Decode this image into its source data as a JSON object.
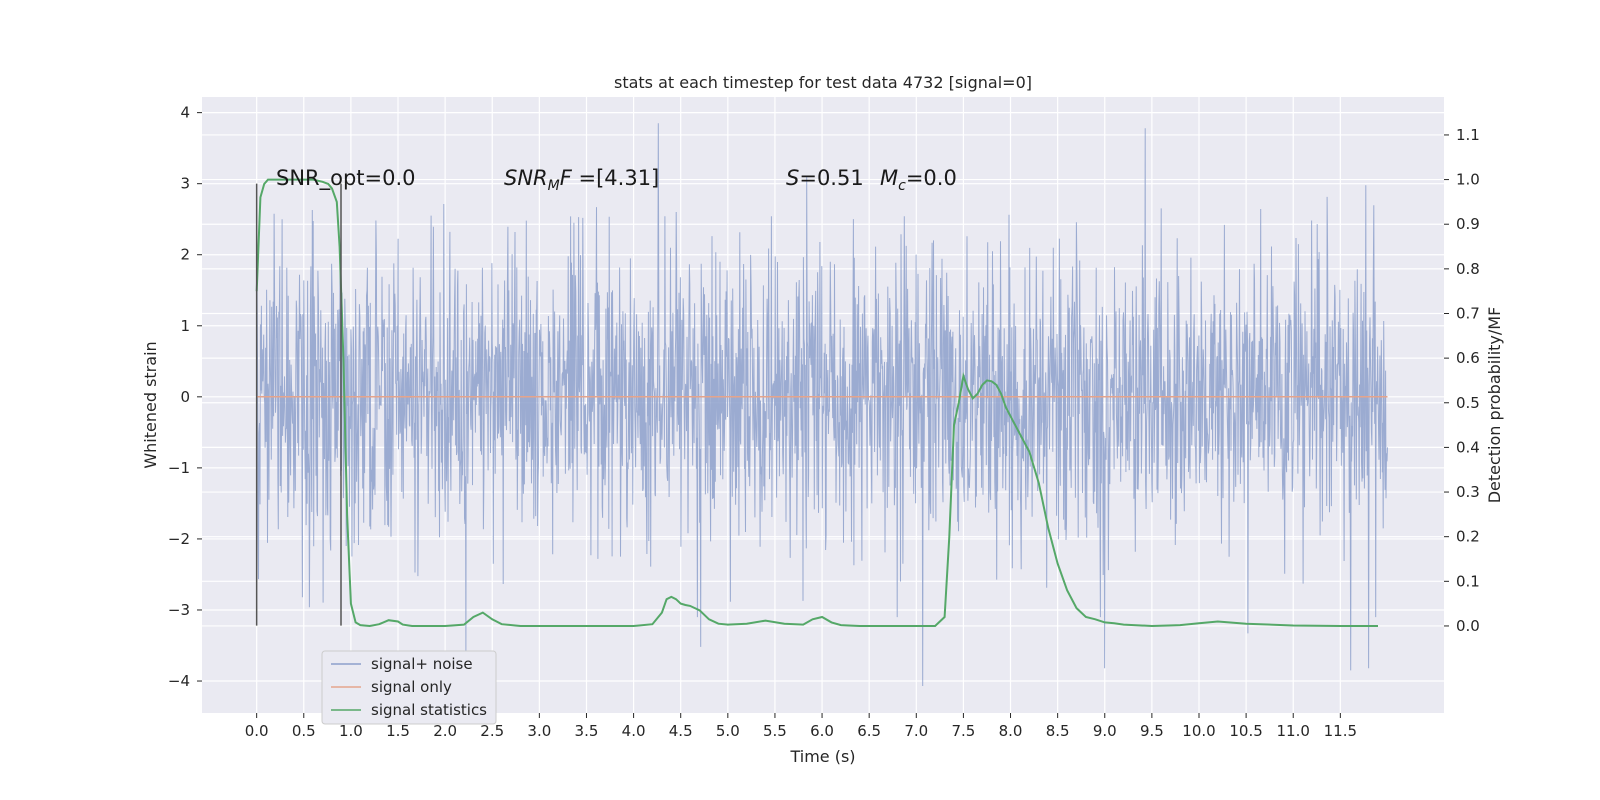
{
  "chart_data": {
    "type": "line",
    "title": "stats at each timestep for test data 4732 [signal=0]",
    "xlabel": "Time (s)",
    "ylabel_left": "Whitened strain",
    "ylabel_right": "Detection probability/MF",
    "xlim": [
      -0.58,
      12.6
    ],
    "ylim_left": [
      -4.45,
      4.22
    ],
    "ylim_right": [
      -0.195,
      1.185
    ],
    "x_ticks": [
      "0.0",
      "0.5",
      "1.0",
      "1.5",
      "2.0",
      "2.5",
      "3.0",
      "3.5",
      "4.0",
      "4.5",
      "5.0",
      "5.5",
      "6.0",
      "6.5",
      "7.0",
      "7.5",
      "8.0",
      "8.5",
      "9.0",
      "9.5",
      "10.0",
      "10.5",
      "11.0",
      "11.5"
    ],
    "y_ticks_left": [
      "4",
      "3",
      "2",
      "1",
      "0",
      "−1",
      "−2",
      "−3",
      "−4"
    ],
    "y_ticks_right": [
      "1.1",
      "1.0",
      "0.9",
      "0.8",
      "0.7",
      "0.6",
      "0.5",
      "0.4",
      "0.3",
      "0.2",
      "0.1",
      "0.0"
    ],
    "grid": true,
    "legend_position": "lower-left",
    "annotations": {
      "snr_opt": "SNR_opt=0.0",
      "snr_mf_prefix": "SNR",
      "snr_mf_sub": "M",
      "snr_mf_rest": "F=[4.31]",
      "s_var": "S",
      "s_val": "=0.51",
      "mc_var": "M",
      "mc_sub": "c",
      "mc_val": "=0.0"
    },
    "series": [
      {
        "name": "signal+ noise",
        "axis": "left",
        "color": "#8da0cb",
        "kind": "noise",
        "x_range": [
          0.0,
          12.0
        ],
        "amplitude_std": 1.0,
        "extremes": [
          {
            "x": 4.26,
            "y": 3.85
          },
          {
            "x": 9.43,
            "y": 3.78
          },
          {
            "x": 7.07,
            "y": -4.07
          },
          {
            "x": 11.61,
            "y": -3.85
          },
          {
            "x": 9.0,
            "y": -3.82
          },
          {
            "x": 11.8,
            "y": -3.82
          },
          {
            "x": 4.71,
            "y": -3.52
          },
          {
            "x": 2.22,
            "y": -3.62
          },
          {
            "x": 10.52,
            "y": -3.33
          }
        ]
      },
      {
        "name": "signal only",
        "axis": "left",
        "color": "#e5a48c",
        "kind": "line",
        "x": [
          0.0,
          12.0
        ],
        "y": [
          0.0,
          0.0
        ]
      },
      {
        "name": "signal statistics",
        "axis": "right",
        "color": "#55a868",
        "kind": "line",
        "x": [
          0.0,
          0.04,
          0.08,
          0.12,
          0.2,
          0.3,
          0.45,
          0.6,
          0.7,
          0.76,
          0.8,
          0.85,
          0.88,
          0.92,
          0.96,
          1.0,
          1.05,
          1.1,
          1.2,
          1.3,
          1.4,
          1.5,
          1.55,
          1.65,
          1.8,
          2.0,
          2.2,
          2.3,
          2.4,
          2.5,
          2.6,
          2.8,
          3.0,
          3.5,
          4.0,
          4.2,
          4.3,
          4.35,
          4.4,
          4.45,
          4.5,
          4.55,
          4.6,
          4.7,
          4.8,
          4.9,
          5.0,
          5.2,
          5.4,
          5.6,
          5.8,
          5.9,
          6.0,
          6.1,
          6.2,
          6.4,
          6.6,
          6.8,
          7.0,
          7.2,
          7.3,
          7.35,
          7.4,
          7.45,
          7.5,
          7.55,
          7.6,
          7.65,
          7.7,
          7.75,
          7.8,
          7.85,
          7.9,
          7.95,
          8.0,
          8.1,
          8.2,
          8.3,
          8.4,
          8.5,
          8.6,
          8.7,
          8.8,
          8.9,
          9.0,
          9.1,
          9.2,
          9.5,
          9.8,
          10.0,
          10.2,
          10.5,
          11.0,
          11.5,
          11.7,
          11.9
        ],
        "y": [
          0.75,
          0.96,
          0.99,
          1.0,
          1.0,
          1.0,
          1.0,
          1.0,
          0.995,
          0.99,
          0.98,
          0.95,
          0.85,
          0.6,
          0.25,
          0.05,
          0.008,
          0.002,
          0.0,
          0.004,
          0.013,
          0.01,
          0.003,
          0.0,
          0.0,
          0.0,
          0.003,
          0.02,
          0.03,
          0.015,
          0.004,
          0.0,
          0.0,
          0.0,
          0.0,
          0.004,
          0.03,
          0.06,
          0.065,
          0.06,
          0.05,
          0.047,
          0.045,
          0.035,
          0.015,
          0.005,
          0.003,
          0.005,
          0.012,
          0.005,
          0.003,
          0.015,
          0.02,
          0.008,
          0.002,
          0.0,
          0.0,
          0.0,
          0.0,
          0.0,
          0.02,
          0.2,
          0.45,
          0.5,
          0.56,
          0.53,
          0.51,
          0.52,
          0.54,
          0.55,
          0.548,
          0.54,
          0.52,
          0.49,
          0.47,
          0.43,
          0.39,
          0.32,
          0.22,
          0.14,
          0.08,
          0.04,
          0.02,
          0.015,
          0.008,
          0.006,
          0.003,
          0.0,
          0.002,
          0.006,
          0.01,
          0.005,
          0.001,
          0.0,
          0.0,
          0.0
        ]
      }
    ],
    "vlines": [
      {
        "x": 0.0,
        "y_range": [
          -3.22,
          3.0
        ],
        "color": "#555555"
      },
      {
        "x": 0.895,
        "y_range": [
          -3.22,
          3.0
        ],
        "color": "#555555"
      }
    ]
  }
}
